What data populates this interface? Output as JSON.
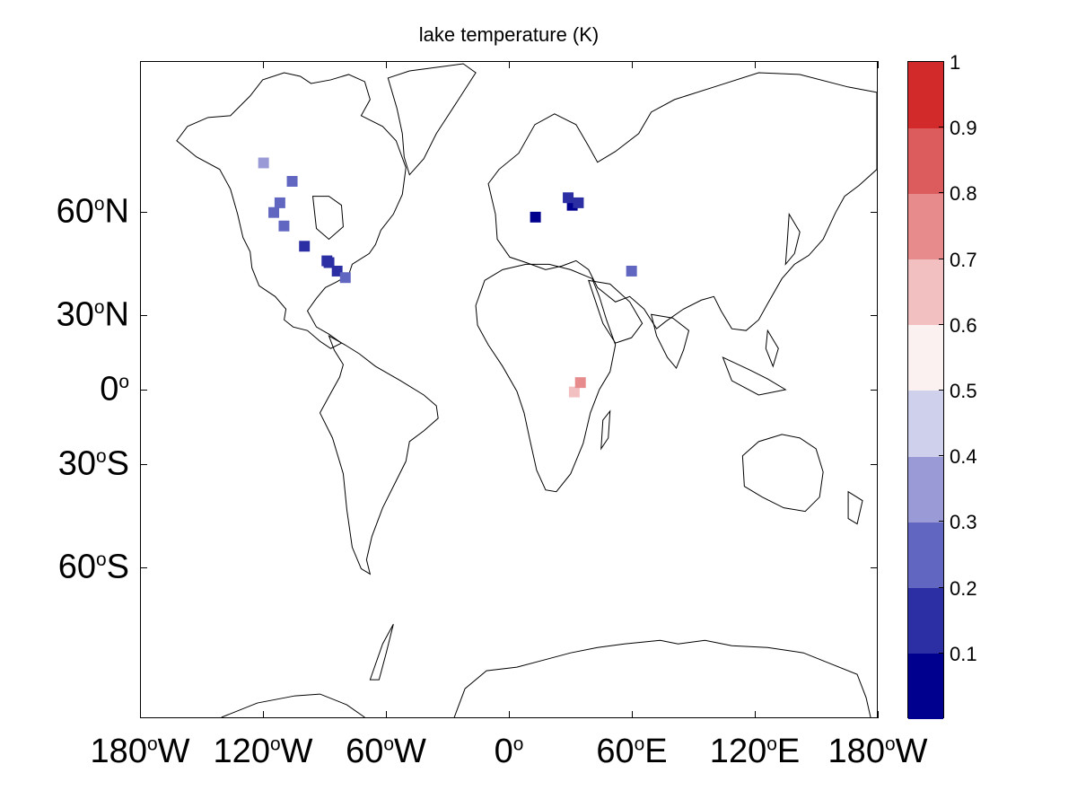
{
  "title": "lake temperature (K)",
  "y_axis": [
    {
      "deg": "60",
      "hemi": "N",
      "lat": 60
    },
    {
      "deg": "30",
      "hemi": "N",
      "lat": 30
    },
    {
      "deg": "0",
      "hemi": "",
      "lat": 0
    },
    {
      "deg": "30",
      "hemi": "S",
      "lat": -30
    },
    {
      "deg": "60",
      "hemi": "S",
      "lat": -60
    }
  ],
  "x_axis": [
    {
      "deg": "180",
      "hemi": "W",
      "lon": -180
    },
    {
      "deg": "120",
      "hemi": "W",
      "lon": -120
    },
    {
      "deg": "60",
      "hemi": "W",
      "lon": -60
    },
    {
      "deg": "0",
      "hemi": "",
      "lon": 0
    },
    {
      "deg": "60",
      "hemi": "E",
      "lon": 60
    },
    {
      "deg": "120",
      "hemi": "E",
      "lon": 120
    },
    {
      "deg": "180",
      "hemi": "W",
      "lon": 180
    }
  ],
  "colorbar": {
    "ticks": [
      "1",
      "0.9",
      "0.8",
      "0.7",
      "0.6",
      "0.5",
      "0.4",
      "0.3",
      "0.2",
      "0.1"
    ],
    "tick_values": [
      1,
      0.9,
      0.8,
      0.7,
      0.6,
      0.5,
      0.4,
      0.3,
      0.2,
      0.1
    ],
    "range": [
      0,
      1
    ],
    "colors": [
      "#00008f",
      "#2b2fa3",
      "#6167c1",
      "#9a9bd6",
      "#cfd0ec",
      "#fbf1f1",
      "#f2c0c1",
      "#e78b8c",
      "#dc5b5d",
      "#d22a2b"
    ]
  },
  "chart_data": {
    "type": "heatmap",
    "title": "lake temperature (K)",
    "projection": "mercator",
    "xlim": [
      -180,
      180
    ],
    "ylim": [
      -80,
      80
    ],
    "colorbar_range": [
      0,
      1
    ],
    "lake_cells": [
      {
        "lon": -120,
        "lat": 69,
        "value": 0.3
      },
      {
        "lon": -106,
        "lat": 66,
        "value": 0.25
      },
      {
        "lon": -112,
        "lat": 62,
        "value": 0.2
      },
      {
        "lon": -115,
        "lat": 60,
        "value": 0.2
      },
      {
        "lon": -110,
        "lat": 57,
        "value": 0.2
      },
      {
        "lon": -100,
        "lat": 52,
        "value": 0.1
      },
      {
        "lon": -88,
        "lat": 47.5,
        "value": 0.1
      },
      {
        "lon": -84,
        "lat": 45,
        "value": 0.1
      },
      {
        "lon": -80,
        "lat": 43,
        "value": 0.2
      },
      {
        "lon": -89,
        "lat": 48,
        "value": 0.1
      },
      {
        "lon": 13,
        "lat": 59,
        "value": 0.05
      },
      {
        "lon": 31,
        "lat": 61.5,
        "value": 0.05
      },
      {
        "lon": 29,
        "lat": 63,
        "value": 0.15
      },
      {
        "lon": 34,
        "lat": 62,
        "value": 0.1
      },
      {
        "lon": 60,
        "lat": 45,
        "value": 0.2
      },
      {
        "lon": 32,
        "lat": -1,
        "value": 0.65
      },
      {
        "lon": 35,
        "lat": 3,
        "value": 0.75
      }
    ]
  }
}
